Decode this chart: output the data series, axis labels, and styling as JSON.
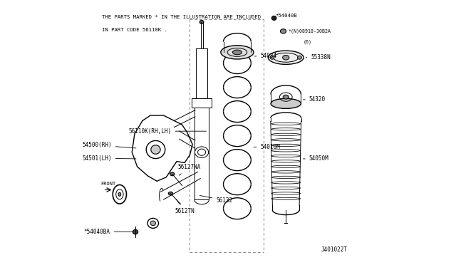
{
  "bg_color": "#FFFFFF",
  "line_color": "#000000",
  "text_color": "#000000",
  "header_text_line1": "THE PARTS MARKED * IN THE ILLUSTRATION ARE INCLUDED",
  "header_text_line2": "IN PART CODE 56110K .",
  "diagram_id": "J401022T"
}
